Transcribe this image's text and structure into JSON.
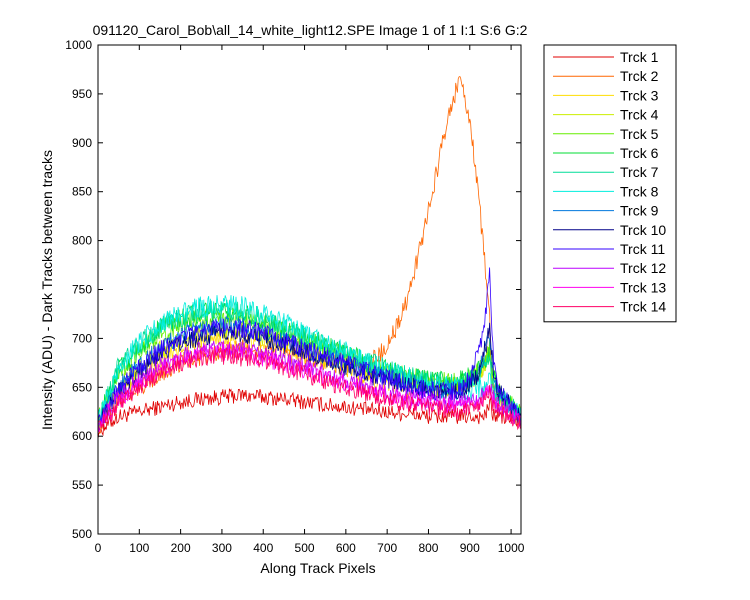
{
  "chart_data": {
    "type": "line",
    "title": "091120_Carol_Bob\\all_14_white_light12.SPE  Image 1 of 1  I:1  S:6  G:2",
    "xlabel": "Along Track Pixels",
    "ylabel": "Intensity (ADU) - Dark Tracks between tracks",
    "xlim": [
      0,
      1024
    ],
    "ylim": [
      500,
      1000
    ],
    "xticks": [
      0,
      100,
      200,
      300,
      400,
      500,
      600,
      700,
      800,
      900,
      1000
    ],
    "yticks": [
      500,
      550,
      600,
      650,
      700,
      750,
      800,
      850,
      900,
      950,
      1000
    ],
    "grid": false,
    "legend_position": "outside-right",
    "x": [
      0,
      50,
      100,
      150,
      200,
      250,
      300,
      350,
      400,
      450,
      500,
      550,
      600,
      650,
      700,
      750,
      800,
      850,
      875,
      900,
      925,
      940,
      948,
      955,
      970,
      1000,
      1023
    ],
    "series": [
      {
        "name": "Trck 1",
        "color": "#e00000",
        "noise": 8,
        "values": [
          605,
          620,
          625,
          630,
          635,
          638,
          640,
          642,
          640,
          638,
          635,
          632,
          630,
          627,
          625,
          623,
          620,
          620,
          620,
          620,
          620,
          622,
          635,
          622,
          620,
          618,
          615
        ]
      },
      {
        "name": "Trck 2",
        "color": "#ff6600",
        "noise": 10,
        "values": [
          610,
          635,
          650,
          665,
          675,
          682,
          688,
          690,
          688,
          685,
          680,
          675,
          672,
          675,
          690,
          740,
          830,
          930,
          965,
          925,
          830,
          760,
          720,
          650,
          640,
          625,
          618
        ]
      },
      {
        "name": "Trck 3",
        "color": "#ffdd00",
        "noise": 10,
        "values": [
          612,
          645,
          665,
          680,
          690,
          697,
          700,
          700,
          698,
          692,
          685,
          678,
          670,
          660,
          655,
          650,
          648,
          648,
          650,
          655,
          665,
          680,
          690,
          660,
          640,
          628,
          620
        ]
      },
      {
        "name": "Trck 4",
        "color": "#ccee00",
        "noise": 10,
        "values": [
          612,
          650,
          670,
          688,
          698,
          705,
          708,
          707,
          703,
          698,
          690,
          683,
          676,
          668,
          662,
          656,
          652,
          650,
          652,
          656,
          665,
          675,
          680,
          658,
          640,
          628,
          620
        ]
      },
      {
        "name": "Trck 5",
        "color": "#66ee00",
        "noise": 11,
        "values": [
          615,
          665,
          688,
          705,
          715,
          720,
          722,
          720,
          714,
          706,
          698,
          690,
          682,
          673,
          665,
          660,
          656,
          654,
          655,
          660,
          668,
          680,
          690,
          665,
          645,
          632,
          622
        ]
      },
      {
        "name": "Trck 6",
        "color": "#00dd33",
        "noise": 11,
        "values": [
          615,
          668,
          692,
          710,
          720,
          726,
          728,
          725,
          718,
          710,
          702,
          692,
          684,
          675,
          667,
          661,
          657,
          655,
          656,
          660,
          668,
          678,
          685,
          662,
          645,
          632,
          622
        ]
      },
      {
        "name": "Trck 7",
        "color": "#00dd99",
        "noise": 11,
        "values": [
          615,
          672,
          695,
          712,
          722,
          728,
          730,
          727,
          720,
          712,
          703,
          693,
          685,
          676,
          668,
          661,
          657,
          654,
          654,
          656,
          662,
          672,
          680,
          658,
          642,
          630,
          620
        ]
      },
      {
        "name": "Trck 8",
        "color": "#00eedd",
        "noise": 11,
        "values": [
          615,
          670,
          695,
          714,
          725,
          732,
          735,
          733,
          725,
          716,
          705,
          695,
          686,
          676,
          668,
          660,
          655,
          650,
          648,
          646,
          648,
          652,
          656,
          645,
          638,
          628,
          620
        ]
      },
      {
        "name": "Trck 9",
        "color": "#0077dd",
        "noise": 10,
        "values": [
          614,
          650,
          672,
          690,
          702,
          710,
          714,
          712,
          706,
          698,
          690,
          682,
          675,
          668,
          661,
          655,
          650,
          647,
          648,
          655,
          668,
          690,
          705,
          668,
          645,
          630,
          620
        ]
      },
      {
        "name": "Trck 10",
        "color": "#000088",
        "noise": 10,
        "values": [
          612,
          645,
          665,
          682,
          694,
          702,
          706,
          705,
          700,
          693,
          686,
          678,
          671,
          664,
          657,
          651,
          646,
          644,
          645,
          652,
          668,
          695,
          715,
          672,
          645,
          630,
          620
        ]
      },
      {
        "name": "Trck 11",
        "color": "#3300ff",
        "noise": 10,
        "values": [
          613,
          648,
          670,
          688,
          700,
          708,
          712,
          710,
          705,
          697,
          689,
          681,
          674,
          666,
          659,
          652,
          647,
          645,
          648,
          660,
          690,
          730,
          765,
          690,
          650,
          632,
          620
        ]
      },
      {
        "name": "Trck 12",
        "color": "#bb00ff",
        "noise": 9,
        "values": [
          612,
          640,
          658,
          672,
          682,
          688,
          690,
          688,
          684,
          678,
          671,
          664,
          658,
          652,
          646,
          641,
          637,
          634,
          634,
          636,
          640,
          648,
          655,
          640,
          632,
          624,
          618
        ]
      },
      {
        "name": "Trck 13",
        "color": "#ff00ee",
        "noise": 9,
        "values": [
          611,
          636,
          654,
          668,
          678,
          684,
          686,
          684,
          680,
          674,
          667,
          660,
          654,
          648,
          642,
          637,
          633,
          630,
          630,
          632,
          636,
          644,
          650,
          636,
          630,
          622,
          616
        ]
      },
      {
        "name": "Trck 14",
        "color": "#ff0066",
        "noise": 9,
        "values": [
          610,
          632,
          650,
          664,
          674,
          680,
          682,
          680,
          676,
          670,
          663,
          656,
          650,
          644,
          638,
          633,
          629,
          626,
          626,
          628,
          632,
          640,
          646,
          632,
          626,
          620,
          614
        ]
      }
    ]
  }
}
